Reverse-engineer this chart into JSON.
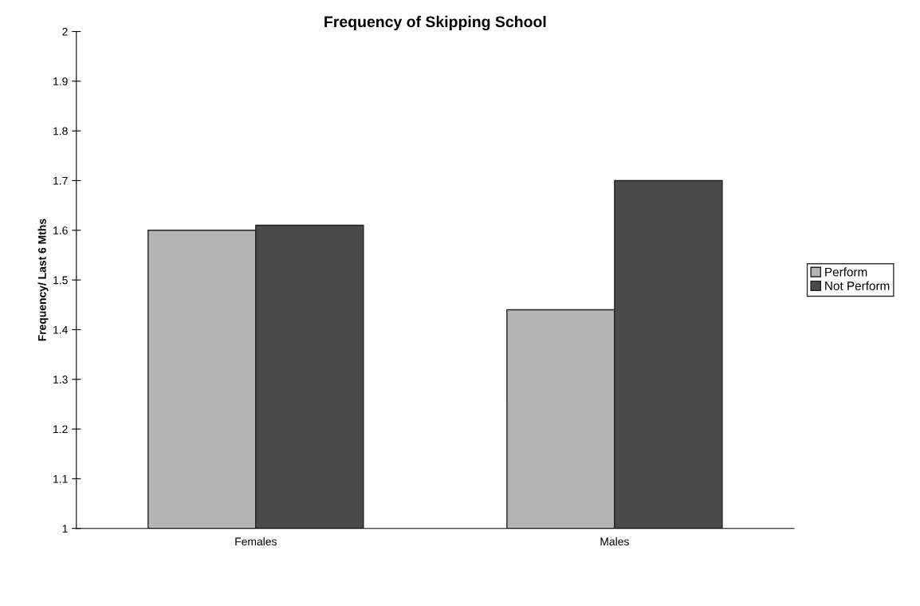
{
  "chart_data": {
    "type": "bar",
    "title": "Frequency of Skipping School",
    "ylabel": "Frequency/ Last 6 Mths",
    "categories": [
      "Females",
      "Males"
    ],
    "series": [
      {
        "name": "Perform",
        "color": "#b4b4b4",
        "values": [
          1.6,
          1.44
        ]
      },
      {
        "name": "Not Perform",
        "color": "#4a4a4a",
        "values": [
          1.61,
          1.7
        ]
      }
    ],
    "ylim": [
      1,
      2
    ],
    "yticks": [
      1,
      1.1,
      1.2,
      1.3,
      1.4,
      1.5,
      1.6,
      1.7,
      1.8,
      1.9,
      2
    ],
    "grid": false,
    "legend": "right"
  }
}
